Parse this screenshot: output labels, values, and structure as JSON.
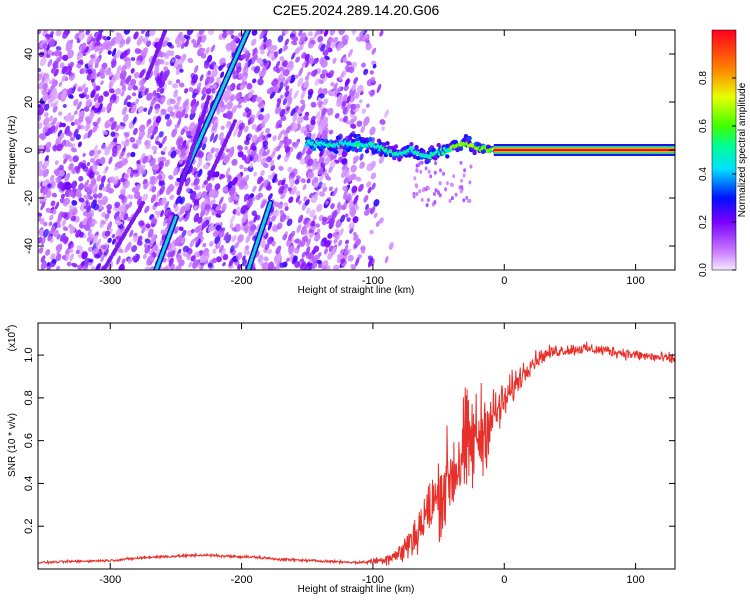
{
  "title": "C2E5.2024.289.14.20.G06",
  "chart_data": [
    {
      "type": "heatmap",
      "name": "spectrogram",
      "xlabel": "Height of straight line (km)",
      "ylabel": "Frequency (Hz)",
      "xlim": [
        -355,
        130
      ],
      "ylim": [
        -50,
        50
      ],
      "xticks": [
        -300,
        -200,
        -100,
        0,
        100
      ],
      "xtick_labels": [
        "-300",
        "-200",
        "-100",
        "0",
        "100"
      ],
      "yticks": [
        -40,
        -20,
        0,
        20,
        40
      ],
      "ytick_labels": [
        "-40",
        "-20",
        "0",
        "20",
        "40"
      ],
      "colorbar": {
        "label": "Normalized spectral amplitude",
        "range": [
          0,
          1
        ],
        "ticks": [
          0.0,
          0.2,
          0.4,
          0.6,
          0.8
        ],
        "tick_labels": [
          "0.0",
          "0.2",
          "0.4",
          "0.6",
          "0.8"
        ]
      },
      "features": {
        "noise_region_x": [
          -355,
          -95
        ],
        "diagonal_tracks": [
          {
            "x": [
              -265,
              -250
            ],
            "y": [
              -50,
              -28
            ]
          },
          {
            "x": [
              -245,
              -195
            ],
            "y": [
              -12,
              50
            ]
          },
          {
            "x": [
              -195,
              -178
            ],
            "y": [
              -50,
              -22
            ]
          },
          {
            "x": [
              -305,
              -275
            ],
            "y": [
              -50,
              -22
            ]
          },
          {
            "x": [
              -272,
              -258
            ],
            "y": [
              30,
              50
            ]
          },
          {
            "x": [
              -248,
              -225
            ],
            "y": [
              -18,
              22
            ]
          },
          {
            "x": [
              -225,
              -205
            ],
            "y": [
              -12,
              12
            ]
          }
        ],
        "carrier_line": [
          {
            "x": -150,
            "y": 3
          },
          {
            "x": -130,
            "y": 2
          },
          {
            "x": -110,
            "y": 3
          },
          {
            "x": -90,
            "y": 0
          },
          {
            "x": -80,
            "y": -2
          },
          {
            "x": -70,
            "y": 0
          },
          {
            "x": -60,
            "y": -3
          },
          {
            "x": -50,
            "y": -1
          },
          {
            "x": -40,
            "y": 1
          },
          {
            "x": -30,
            "y": 3
          },
          {
            "x": -20,
            "y": 1
          },
          {
            "x": -10,
            "y": 0
          },
          {
            "x": 0,
            "y": 0
          },
          {
            "x": 130,
            "y": 0
          }
        ]
      }
    },
    {
      "type": "line",
      "name": "snr",
      "xlabel": "Height of straight line (km)",
      "ylabel": "SNR (10 * v/v)",
      "yscale_label": "(x10",
      "yscale_exp": "4",
      "yscale_close": ")",
      "xlim": [
        -355,
        130
      ],
      "ylim": [
        0,
        1.15
      ],
      "xticks": [
        -300,
        -200,
        -100,
        0,
        100
      ],
      "xtick_labels": [
        "-300",
        "-200",
        "-100",
        "0",
        "100"
      ],
      "yticks": [
        0.2,
        0.4,
        0.6,
        0.8,
        1.0
      ],
      "ytick_labels": [
        "0.2",
        "0.4",
        "0.6",
        "0.8",
        "1.0"
      ],
      "series": [
        {
          "name": "SNR",
          "color": "#e8302a",
          "x": [
            -355,
            -330,
            -300,
            -270,
            -250,
            -230,
            -210,
            -190,
            -170,
            -150,
            -130,
            -110,
            -95,
            -80,
            -70,
            -60,
            -50,
            -40,
            -30,
            -20,
            -10,
            0,
            10,
            20,
            30,
            40,
            60,
            80,
            100,
            130
          ],
          "y": [
            0.03,
            0.035,
            0.04,
            0.055,
            0.06,
            0.065,
            0.06,
            0.055,
            0.045,
            0.04,
            0.035,
            0.03,
            0.04,
            0.07,
            0.14,
            0.24,
            0.34,
            0.45,
            0.55,
            0.62,
            0.7,
            0.78,
            0.88,
            0.96,
            1.0,
            1.02,
            1.03,
            1.02,
            1.0,
            0.98
          ],
          "noise": [
            0.008,
            0.008,
            0.008,
            0.01,
            0.01,
            0.01,
            0.01,
            0.01,
            0.01,
            0.008,
            0.008,
            0.008,
            0.03,
            0.07,
            0.15,
            0.22,
            0.28,
            0.36,
            0.4,
            0.35,
            0.22,
            0.14,
            0.1,
            0.07,
            0.05,
            0.045,
            0.04,
            0.04,
            0.04,
            0.04
          ]
        }
      ]
    }
  ]
}
